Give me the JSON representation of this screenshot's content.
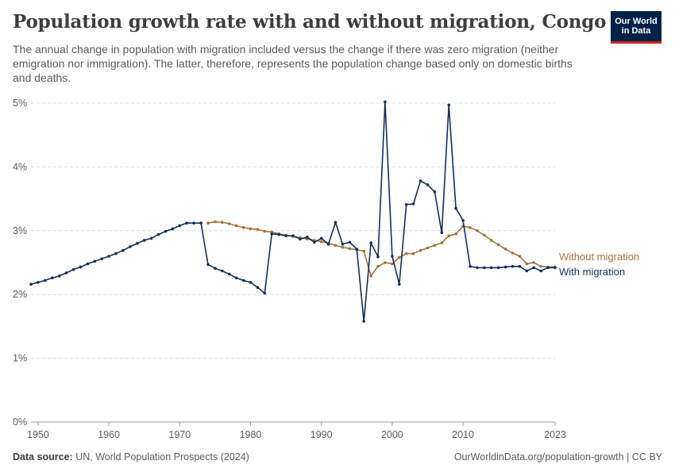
{
  "header": {
    "title": "Population growth rate with and without migration, Congo",
    "subtitle": "The annual change in population with migration included versus the change if there was zero migration (neither emigration nor immigration). The latter, therefore, represents the population change based only on domestic births and deaths."
  },
  "logo": {
    "line1": "Our World",
    "line2": "in Data"
  },
  "footer": {
    "source_label": "Data source:",
    "source_text": "UN, World Population Prospects (2024)",
    "url_text": "OurWorldinData.org/population-growth | CC BY"
  },
  "colors": {
    "with_migration": "#12305b",
    "without_migration": "#a2733e",
    "grid": "#dcdcdc",
    "axis": "#9a9a9a"
  },
  "chart_data": {
    "type": "line",
    "xlim": [
      1949,
      2023
    ],
    "ylim": [
      0,
      5
    ],
    "x_ticks": [
      {
        "value": 1950,
        "label": "1950"
      },
      {
        "value": 1960,
        "label": "1960"
      },
      {
        "value": 1970,
        "label": "1970"
      },
      {
        "value": 1980,
        "label": "1980"
      },
      {
        "value": 1990,
        "label": "1990"
      },
      {
        "value": 2000,
        "label": "2000"
      },
      {
        "value": 2010,
        "label": "2010"
      },
      {
        "value": 2023,
        "label": "2023"
      }
    ],
    "y_ticks": [
      {
        "value": 0,
        "label": "0%"
      },
      {
        "value": 1,
        "label": "1%"
      },
      {
        "value": 2,
        "label": "2%"
      },
      {
        "value": 3,
        "label": "3%"
      },
      {
        "value": 4,
        "label": "4%"
      },
      {
        "value": 5,
        "label": "5%"
      }
    ],
    "grid": true,
    "legend": "inline-right",
    "series": [
      {
        "name": "Without migration",
        "x": [
          1974,
          1975,
          1976,
          1977,
          1978,
          1979,
          1980,
          1981,
          1982,
          1983,
          1984,
          1985,
          1986,
          1987,
          1988,
          1989,
          1990,
          1991,
          1992,
          1993,
          1994,
          1995,
          1996,
          1997,
          1998,
          1999,
          2000,
          2001,
          2002,
          2003,
          2004,
          2005,
          2006,
          2007,
          2008,
          2009,
          2010,
          2011,
          2012,
          2013,
          2014,
          2015,
          2016,
          2017,
          2018,
          2019,
          2020,
          2021,
          2022,
          2023
        ],
        "values": [
          3.12,
          3.14,
          3.13,
          3.11,
          3.08,
          3.05,
          3.03,
          3.02,
          2.99,
          2.98,
          2.95,
          2.93,
          2.91,
          2.89,
          2.87,
          2.85,
          2.83,
          2.8,
          2.77,
          2.74,
          2.72,
          2.7,
          2.68,
          2.29,
          2.44,
          2.5,
          2.48,
          2.58,
          2.64,
          2.64,
          2.69,
          2.73,
          2.77,
          2.81,
          2.92,
          2.95,
          3.07,
          3.05,
          3.0,
          2.93,
          2.85,
          2.78,
          2.71,
          2.65,
          2.6,
          2.48,
          2.5,
          2.44,
          2.43,
          2.43
        ]
      },
      {
        "name": "With migration",
        "x": [
          1949,
          1950,
          1951,
          1952,
          1953,
          1954,
          1955,
          1956,
          1957,
          1958,
          1959,
          1960,
          1961,
          1962,
          1963,
          1964,
          1965,
          1966,
          1967,
          1968,
          1969,
          1970,
          1971,
          1972,
          1973,
          1974,
          1975,
          1976,
          1977,
          1978,
          1979,
          1980,
          1981,
          1982,
          1983,
          1984,
          1985,
          1986,
          1987,
          1988,
          1989,
          1990,
          1991,
          1992,
          1993,
          1994,
          1995,
          1996,
          1997,
          1998,
          1999,
          2000,
          2001,
          2002,
          2003,
          2004,
          2005,
          2006,
          2007,
          2008,
          2009,
          2010,
          2011,
          2012,
          2013,
          2014,
          2015,
          2016,
          2017,
          2018,
          2019,
          2020,
          2021,
          2022,
          2023
        ],
        "values": [
          2.16,
          2.19,
          2.22,
          2.26,
          2.29,
          2.34,
          2.39,
          2.43,
          2.48,
          2.52,
          2.56,
          2.6,
          2.64,
          2.69,
          2.75,
          2.8,
          2.85,
          2.88,
          2.94,
          2.99,
          3.03,
          3.08,
          3.12,
          3.12,
          3.12,
          2.47,
          2.41,
          2.37,
          2.32,
          2.26,
          2.22,
          2.19,
          2.11,
          2.02,
          2.95,
          2.94,
          2.92,
          2.92,
          2.87,
          2.9,
          2.82,
          2.88,
          2.79,
          3.13,
          2.79,
          2.82,
          2.71,
          1.58,
          2.81,
          2.59,
          5.02,
          2.6,
          2.16,
          3.41,
          3.42,
          3.78,
          3.72,
          3.61,
          2.97,
          4.97,
          3.35,
          3.16,
          2.44,
          2.42,
          2.42,
          2.42,
          2.42,
          2.43,
          2.44,
          2.44,
          2.37,
          2.42,
          2.37,
          2.42,
          2.42
        ]
      }
    ]
  }
}
